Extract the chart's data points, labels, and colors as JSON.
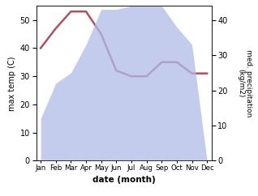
{
  "months": [
    "Jan",
    "Feb",
    "Mar",
    "Apr",
    "May",
    "Jun",
    "Jul",
    "Aug",
    "Sep",
    "Oct",
    "Nov",
    "Dec"
  ],
  "temperature": [
    40,
    47,
    53,
    53,
    45,
    32,
    30,
    30,
    35,
    35,
    31,
    31
  ],
  "precipitation": [
    12,
    22,
    25,
    33,
    43,
    43,
    44,
    44,
    44,
    38,
    33,
    0
  ],
  "temp_ylim": [
    0,
    55
  ],
  "precip_ylim": [
    0,
    44
  ],
  "temp_yticks": [
    0,
    10,
    20,
    30,
    40,
    50
  ],
  "precip_yticks": [
    0,
    10,
    20,
    30,
    40
  ],
  "xlabel": "date (month)",
  "ylabel_left": "max temp (C)",
  "ylabel_right": "med. precipitation\n(kg/m2)",
  "line_color": "#b05060",
  "fill_color": "#b0bce8",
  "fill_alpha": 0.75,
  "bg_color": "#ffffff",
  "fig_width": 3.18,
  "fig_height": 2.42,
  "dpi": 100
}
